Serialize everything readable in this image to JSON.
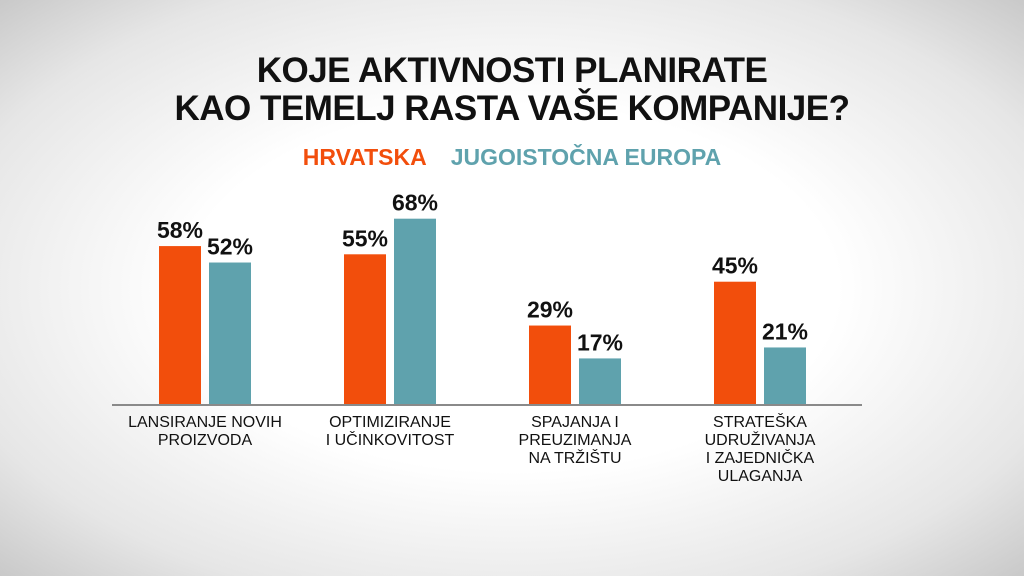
{
  "chart_data": {
    "type": "bar",
    "title": "KOJE AKTIVNOSTI PLANIRATE\nKAO TEMELJ RASTA VAŠE KOMPANIJE?",
    "categories": [
      "LANSIRANJE NOVIH\nPROIZVODA",
      "OPTIMIZIRANJE\nI UČINKOVITOST",
      "SPAJANJA I\nPREUZIMANJA\nNA TRŽIŠTU",
      "STRATEŠKA\nUDRUŽIVANJA\nI ZAJEDNIČKA\nULAGANJA"
    ],
    "series": [
      {
        "name": "HRVATSKA",
        "color": "#f24e0c",
        "values": [
          58,
          55,
          29,
          45
        ],
        "value_labels": [
          "58%",
          "55%",
          "29%",
          "45%"
        ]
      },
      {
        "name": "JUGOISTOČNA EUROPA",
        "color": "#5fa2ad",
        "values": [
          52,
          68,
          17,
          21
        ],
        "value_labels": [
          "52%",
          "68%",
          "17%",
          "21%"
        ]
      }
    ],
    "ylim": [
      0,
      100
    ]
  }
}
